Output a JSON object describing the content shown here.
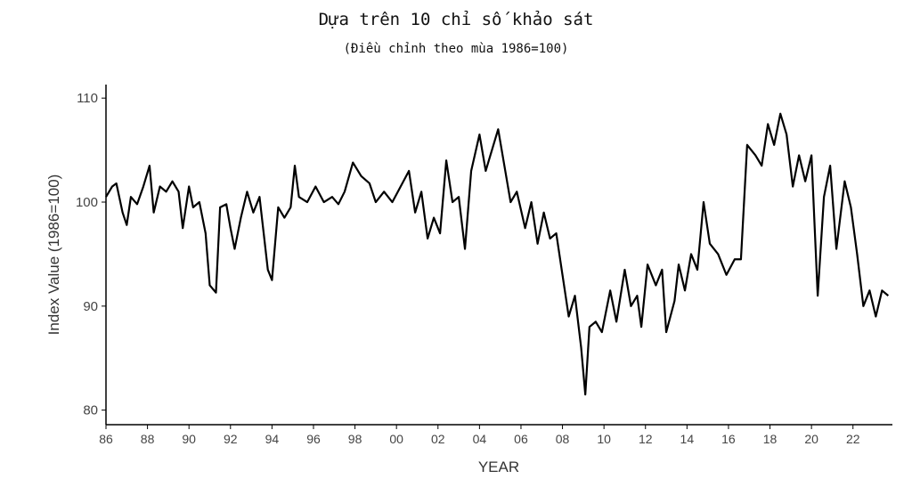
{
  "chart_data": {
    "type": "line",
    "title": "Dựa trên 10 chỉ số khảo sát",
    "subtitle": "(Điều chỉnh theo mùa 1986=100)",
    "x_label": "YEAR",
    "y_label": "Index Value (1986=100)",
    "x": [
      1986.0,
      1986.3,
      1986.5,
      1986.8,
      1987.0,
      1987.2,
      1987.5,
      1987.8,
      1988.1,
      1988.3,
      1988.6,
      1988.9,
      1989.2,
      1989.5,
      1989.7,
      1990.0,
      1990.2,
      1990.5,
      1990.8,
      1991.0,
      1991.3,
      1991.5,
      1991.8,
      1992.0,
      1992.2,
      1992.5,
      1992.8,
      1993.1,
      1993.4,
      1993.6,
      1993.8,
      1994.0,
      1994.3,
      1994.6,
      1994.9,
      1995.1,
      1995.3,
      1995.7,
      1996.1,
      1996.5,
      1996.9,
      1997.2,
      1997.5,
      1997.9,
      1998.3,
      1998.7,
      1999.0,
      1999.4,
      1999.8,
      2000.2,
      2000.6,
      2000.9,
      2001.2,
      2001.5,
      2001.8,
      2002.1,
      2002.4,
      2002.7,
      2003.0,
      2003.3,
      2003.6,
      2004.0,
      2004.3,
      2004.6,
      2004.9,
      2005.2,
      2005.5,
      2005.8,
      2006.2,
      2006.5,
      2006.8,
      2007.1,
      2007.4,
      2007.7,
      2008.0,
      2008.3,
      2008.6,
      2008.9,
      2009.1,
      2009.3,
      2009.6,
      2009.9,
      2010.3,
      2010.6,
      2011.0,
      2011.3,
      2011.6,
      2011.8,
      2012.1,
      2012.5,
      2012.8,
      2013.0,
      2013.4,
      2013.6,
      2013.9,
      2014.2,
      2014.5,
      2014.8,
      2015.1,
      2015.5,
      2015.9,
      2016.3,
      2016.6,
      2016.9,
      2017.3,
      2017.6,
      2017.9,
      2018.2,
      2018.5,
      2018.8,
      2019.1,
      2019.4,
      2019.7,
      2020.0,
      2020.3,
      2020.6,
      2020.9,
      2021.2,
      2021.6,
      2021.9,
      2022.2,
      2022.5,
      2022.8,
      2023.1,
      2023.4,
      2023.7
    ],
    "series": [
      {
        "name": "Index Value",
        "color": "#000000",
        "values": [
          100.5,
          101.5,
          101.8,
          99,
          97.8,
          100.5,
          99.8,
          101.5,
          103.5,
          99,
          101.5,
          101,
          102,
          101,
          97.5,
          101.5,
          99.5,
          100,
          97,
          92,
          91.3,
          99.5,
          99.8,
          97.5,
          95.5,
          98.5,
          101,
          99,
          100.5,
          97,
          93.5,
          92.5,
          99.5,
          98.5,
          99.5,
          103.5,
          100.5,
          100,
          101.5,
          100,
          100.5,
          99.8,
          101,
          103.8,
          102.5,
          101.8,
          100,
          101,
          100,
          101.5,
          103,
          99,
          101,
          96.5,
          98.5,
          97,
          104,
          100,
          100.5,
          95.5,
          103,
          106.5,
          103,
          105,
          107,
          103.5,
          100,
          101,
          97.5,
          100,
          96,
          99,
          96.5,
          97,
          93,
          89,
          91,
          86,
          81.5,
          88,
          88.5,
          87.5,
          91.5,
          88.5,
          93.5,
          90,
          91,
          88,
          94,
          92,
          93.5,
          87.5,
          90.5,
          94,
          91.5,
          95,
          93.5,
          100,
          96,
          95,
          93,
          94.5,
          94.5,
          105.5,
          104.5,
          103.5,
          107.5,
          105.5,
          108.5,
          106.5,
          101.5,
          104.5,
          102,
          104.5,
          91,
          100.5,
          103.5,
          95.5,
          102,
          99.5,
          95,
          90,
          91.5,
          89,
          91.5,
          91
        ]
      }
    ],
    "xlim": [
      1986,
      2023.9
    ],
    "ylim": [
      78.6,
      111.3
    ],
    "xticks": [
      {
        "value": 1986,
        "label": "86"
      },
      {
        "value": 1988,
        "label": "88"
      },
      {
        "value": 1990,
        "label": "90"
      },
      {
        "value": 1992,
        "label": "92"
      },
      {
        "value": 1994,
        "label": "94"
      },
      {
        "value": 1996,
        "label": "96"
      },
      {
        "value": 1998,
        "label": "98"
      },
      {
        "value": 2000,
        "label": "00"
      },
      {
        "value": 2002,
        "label": "02"
      },
      {
        "value": 2004,
        "label": "04"
      },
      {
        "value": 2006,
        "label": "06"
      },
      {
        "value": 2008,
        "label": "08"
      },
      {
        "value": 2010,
        "label": "10"
      },
      {
        "value": 2012,
        "label": "12"
      },
      {
        "value": 2014,
        "label": "14"
      },
      {
        "value": 2016,
        "label": "16"
      },
      {
        "value": 2018,
        "label": "18"
      },
      {
        "value": 2020,
        "label": "20"
      },
      {
        "value": 2022,
        "label": "22"
      }
    ],
    "yticks": [
      80,
      90,
      100,
      110
    ],
    "grid": false
  }
}
